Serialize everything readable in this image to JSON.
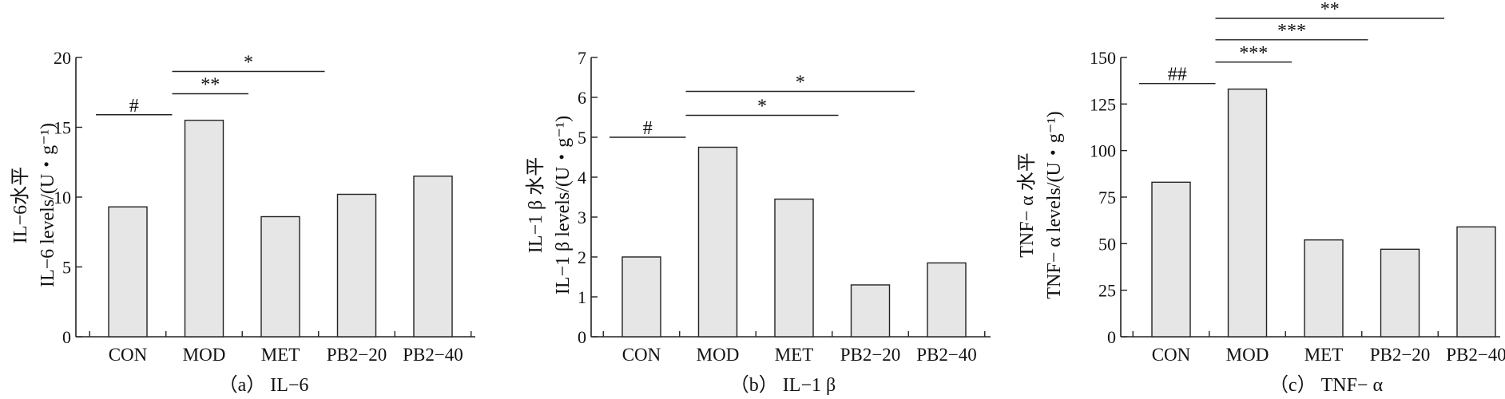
{
  "chart_data": [
    {
      "type": "bar",
      "categories": [
        "CON",
        "MOD",
        "MET",
        "PB2−20",
        "PB2−40"
      ],
      "values": [
        9.3,
        15.5,
        8.6,
        10.2,
        11.5
      ],
      "ylabel_lines": [
        "IL−6水平",
        "IL−6 levels/(U・g⁻¹)"
      ],
      "ylim": [
        0,
        20
      ],
      "yticks": [
        0,
        5,
        10,
        15,
        20
      ],
      "caption": "（a） IL−6",
      "grid": false,
      "significance": [
        {
          "from": 0,
          "to": 1,
          "y": 15.9,
          "label": "#"
        },
        {
          "from": 1,
          "to": 2,
          "y": 17.4,
          "label": "**"
        },
        {
          "from": 1,
          "to": 3,
          "y": 19.0,
          "label": "*"
        }
      ]
    },
    {
      "type": "bar",
      "categories": [
        "CON",
        "MOD",
        "MET",
        "PB2−20",
        "PB2−40"
      ],
      "values": [
        2.0,
        4.75,
        3.45,
        1.3,
        1.85
      ],
      "ylabel_lines": [
        "IL−1 β 水平",
        "IL−1 β  levels/(U・g⁻¹)"
      ],
      "ylim": [
        0,
        7
      ],
      "yticks": [
        0,
        1,
        2,
        3,
        4,
        5,
        6,
        7
      ],
      "caption": "（b） IL−1 β",
      "grid": false,
      "significance": [
        {
          "from": 0,
          "to": 1,
          "y": 5.0,
          "label": "#"
        },
        {
          "from": 1,
          "to": 3,
          "y": 5.55,
          "label": "*"
        },
        {
          "from": 1,
          "to": 4,
          "y": 6.15,
          "label": "*"
        }
      ]
    },
    {
      "type": "bar",
      "categories": [
        "CON",
        "MOD",
        "MET",
        "PB2−20",
        "PB2−40"
      ],
      "values": [
        83,
        133,
        52,
        47,
        59
      ],
      "ylabel_lines": [
        "TNF− α 水平",
        "TNF− α  levels/(U・g⁻¹)"
      ],
      "ylim": [
        0,
        150
      ],
      "yticks": [
        0,
        25,
        50,
        75,
        100,
        125,
        150
      ],
      "caption": "（c） TNF− α",
      "grid": false,
      "significance": [
        {
          "from": 0,
          "to": 1,
          "y": 136,
          "label": "##"
        },
        {
          "from": 1,
          "to": 2,
          "y": 147.5,
          "label": "***"
        },
        {
          "from": 1,
          "to": 3,
          "y": 159.5,
          "label": "***"
        },
        {
          "from": 1,
          "to": 4,
          "y": 171,
          "label": "**"
        }
      ]
    }
  ]
}
